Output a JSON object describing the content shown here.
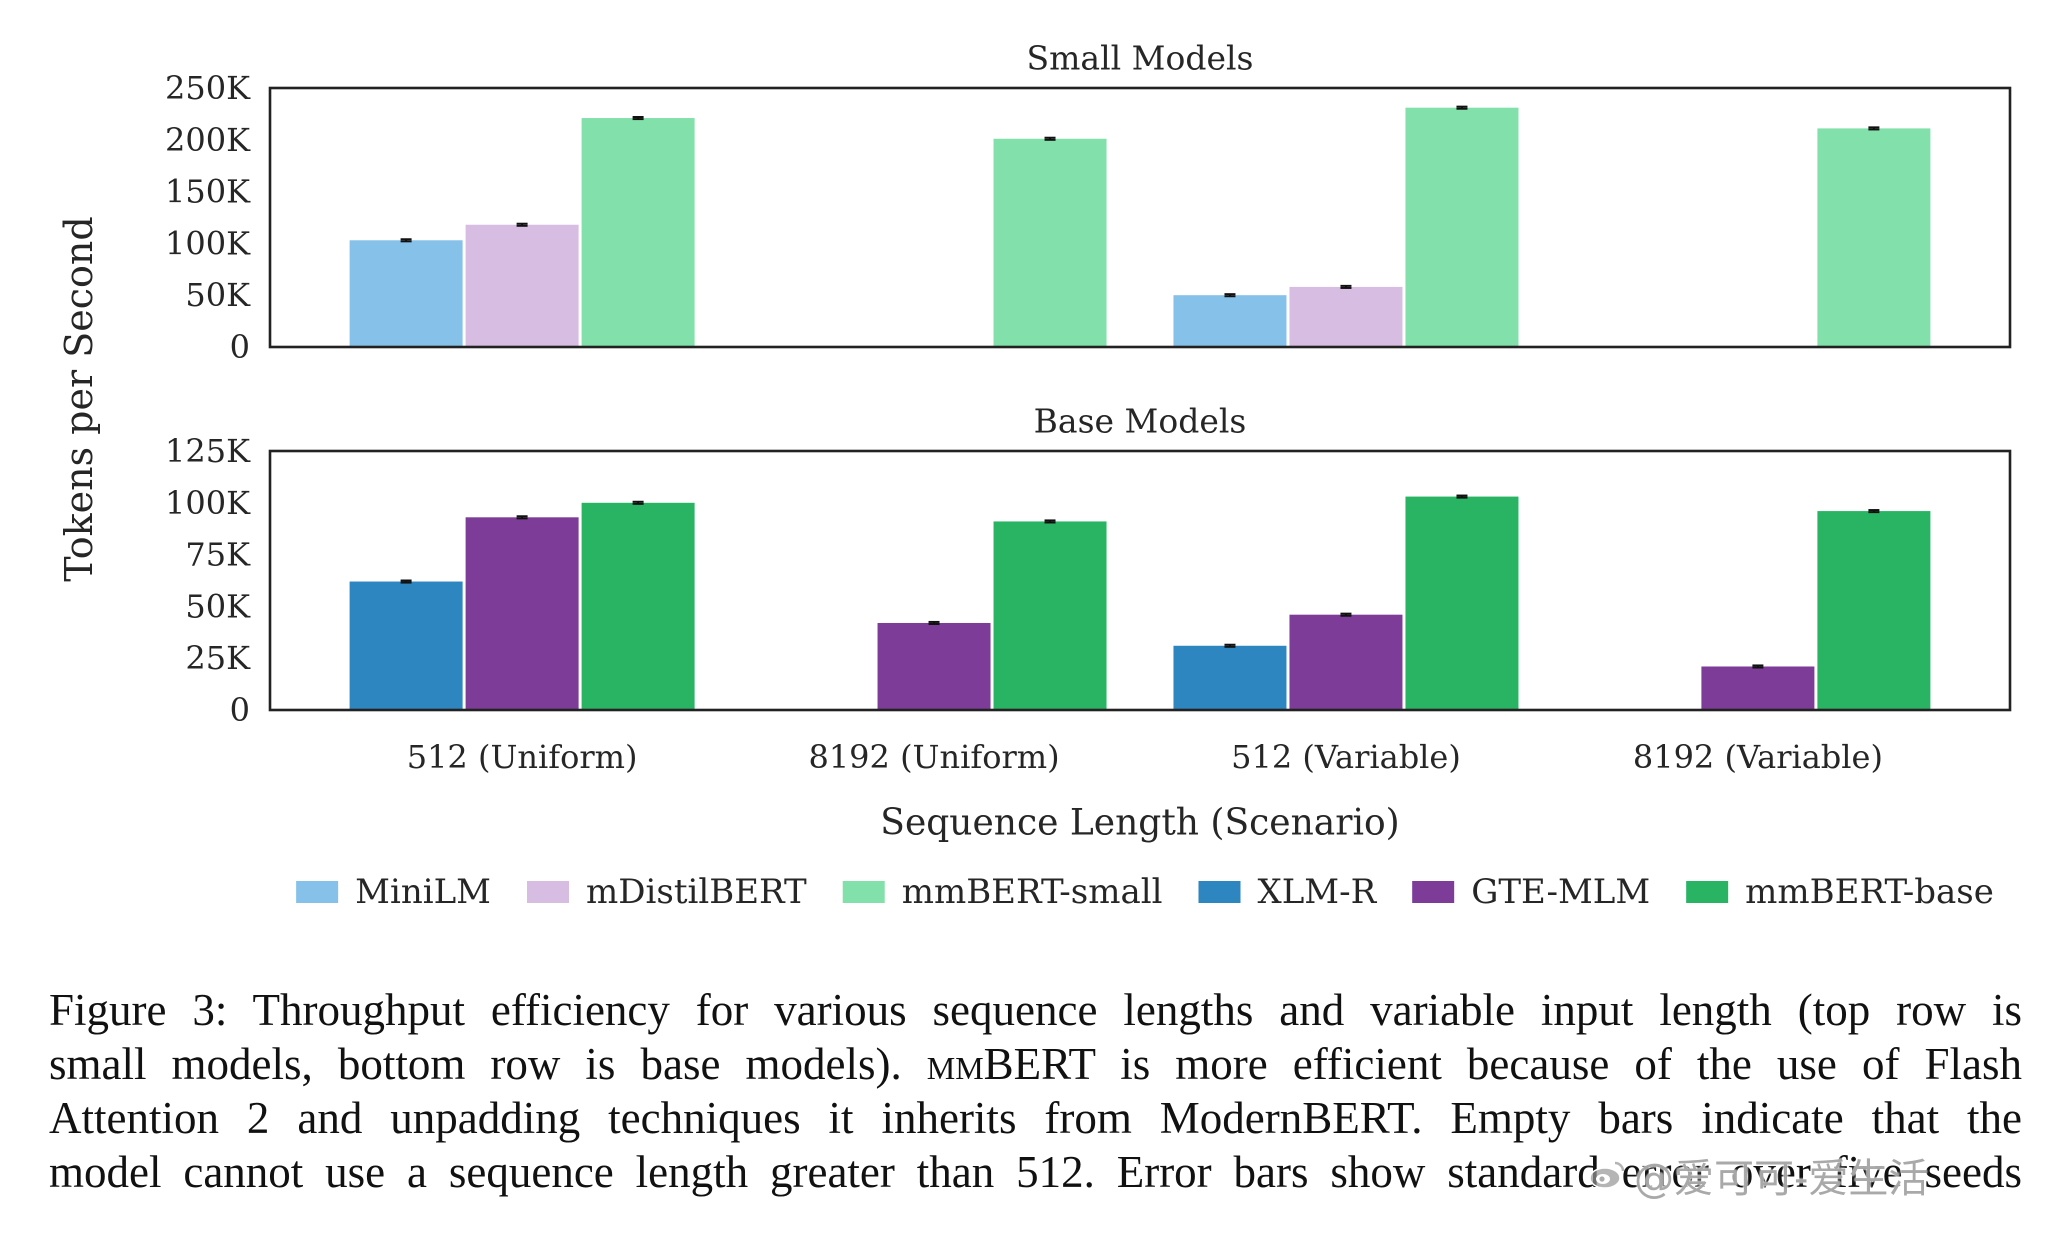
{
  "chart_data": {
    "type": "bar",
    "categories": [
      "512 (Uniform)",
      "8192 (Uniform)",
      "512 (Variable)",
      "8192 (Variable)"
    ],
    "xlabel": "Sequence Length (Scenario)",
    "ylabel": "Tokens per Second",
    "legend": "bottom-center",
    "grid": false,
    "panels": [
      {
        "title": "Small Models",
        "ylim": [
          0,
          250000
        ],
        "yticks": [
          0,
          50000,
          100000,
          150000,
          200000,
          250000
        ],
        "ytick_labels": [
          "0",
          "50K",
          "100K",
          "150K",
          "200K",
          "250K"
        ],
        "series": [
          {
            "name": "MiniLM",
            "color": "#85C1E9",
            "values": [
              103000,
              null,
              50000,
              null
            ],
            "errors": [
              1000,
              null,
              1000,
              null
            ]
          },
          {
            "name": "mDistilBERT",
            "color": "#D7BDE2",
            "values": [
              118000,
              null,
              58000,
              null
            ],
            "errors": [
              1000,
              null,
              1000,
              null
            ]
          },
          {
            "name": "mmBERT-small",
            "color": "#82E0AA",
            "values": [
              221000,
              201000,
              231000,
              211000
            ],
            "errors": [
              1000,
              1000,
              1000,
              1000
            ]
          }
        ]
      },
      {
        "title": "Base Models",
        "ylim": [
          0,
          125000
        ],
        "yticks": [
          0,
          25000,
          50000,
          75000,
          100000,
          125000
        ],
        "ytick_labels": [
          "0",
          "25K",
          "50K",
          "75K",
          "100K",
          "125K"
        ],
        "series": [
          {
            "name": "XLM-R",
            "color": "#2E86C1",
            "values": [
              62000,
              null,
              31000,
              null
            ],
            "errors": [
              500,
              null,
              500,
              null
            ]
          },
          {
            "name": "GTE-MLM",
            "color": "#7D3C98",
            "values": [
              93000,
              42000,
              46000,
              21000
            ],
            "errors": [
              500,
              500,
              500,
              500
            ]
          },
          {
            "name": "mmBERT-base",
            "color": "#28B463",
            "values": [
              100000,
              91000,
              103000,
              96000
            ],
            "errors": [
              500,
              500,
              500,
              500
            ]
          }
        ]
      }
    ]
  },
  "caption": {
    "line1": "Figure 3: Throughput efficiency for various sequence lengths and variable input length (top row is",
    "line2_pre": "small models, bottom row is base models). ",
    "line2_smallcaps": "mm",
    "line2_post": "BERT is more efficient because of the use of Flash",
    "line3": "Attention 2 and unpadding techniques it inherits from ModernBERT. Empty bars indicate that the",
    "line4": "model cannot use a sequence length greater than 512. Error bars show standard error over five seeds"
  },
  "watermark": {
    "text": "@爱可可-爱生活"
  }
}
